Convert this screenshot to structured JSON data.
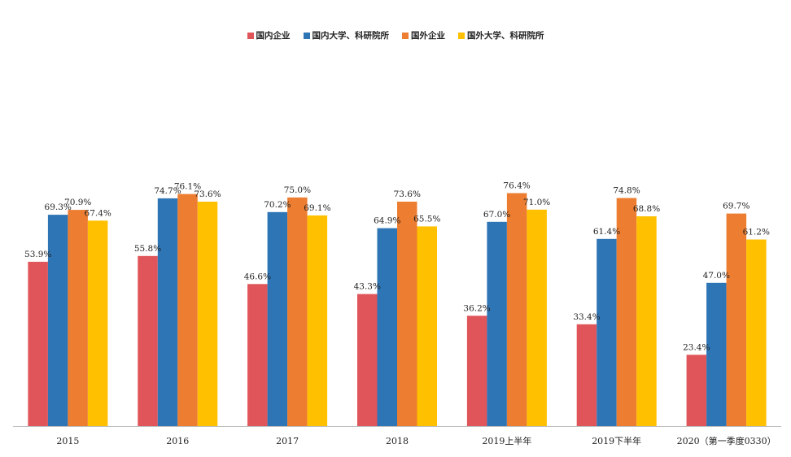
{
  "chart_data": {
    "type": "bar",
    "title": "",
    "xlabel": "",
    "ylabel": "",
    "ylim": [
      0,
      90
    ],
    "grid": false,
    "legend_position": "top",
    "categories": [
      "2015",
      "2016",
      "2017",
      "2018",
      "2019上半年",
      "2019下半年",
      "2020（第一季度0330）"
    ],
    "series": [
      {
        "name": "国内企业",
        "color": "#E0555A",
        "values": [
          53.9,
          55.8,
          46.6,
          43.3,
          36.2,
          33.4,
          23.4
        ]
      },
      {
        "name": "国内大学、科研院所",
        "color": "#2E75B6",
        "values": [
          69.3,
          74.7,
          70.2,
          64.9,
          67.0,
          61.4,
          47.0
        ]
      },
      {
        "name": "国外企业",
        "color": "#ED7D31",
        "values": [
          70.9,
          76.1,
          75.0,
          73.6,
          76.4,
          74.8,
          69.7
        ]
      },
      {
        "name": "国外大学、科研院所",
        "color": "#FFC000",
        "values": [
          67.4,
          73.6,
          69.1,
          65.5,
          71.0,
          68.8,
          61.2
        ]
      }
    ]
  }
}
